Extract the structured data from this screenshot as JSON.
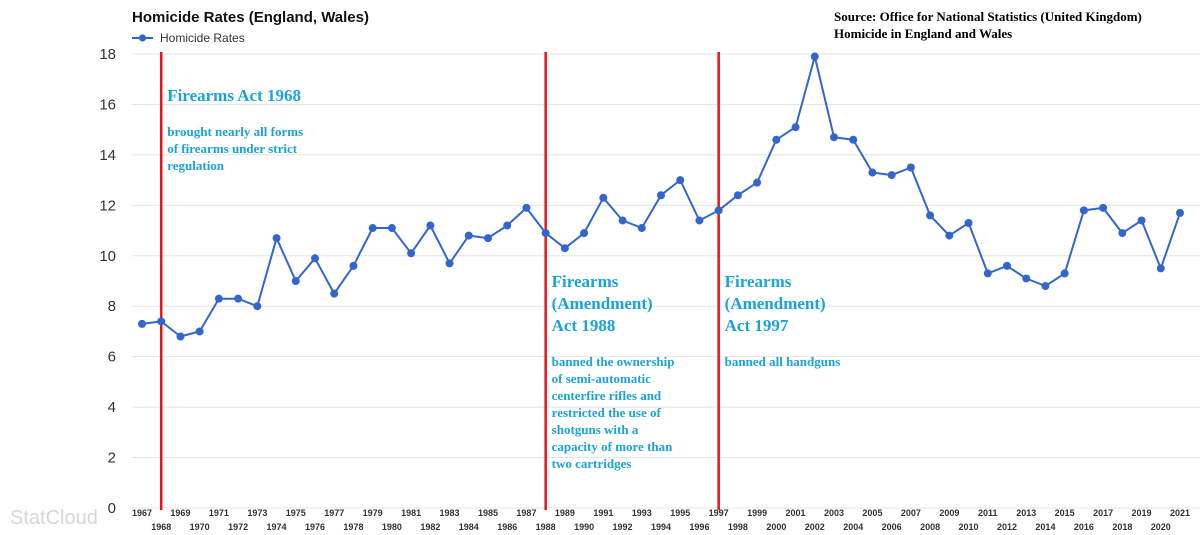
{
  "chart_data": {
    "type": "line",
    "title": "Homicide Rates (England, Wales)",
    "source_lines": [
      "Source: Office for National Statistics (United Kingdom)",
      "Homicide in England and Wales"
    ],
    "legend": "Homicide Rates",
    "legend_position": "top-left",
    "watermark": "StatCloud",
    "grid": true,
    "ylim": [
      0,
      18
    ],
    "yticks": [
      0,
      2,
      4,
      6,
      8,
      10,
      12,
      14,
      16,
      18
    ],
    "xlim": [
      1967,
      2021
    ],
    "series": [
      {
        "name": "Homicide Rates",
        "color": "#3366cc",
        "x": [
          1967,
          1968,
          1969,
          1970,
          1971,
          1972,
          1973,
          1974,
          1975,
          1976,
          1977,
          1978,
          1979,
          1980,
          1981,
          1982,
          1983,
          1984,
          1985,
          1986,
          1987,
          1988,
          1989,
          1990,
          1991,
          1992,
          1993,
          1994,
          1995,
          1996,
          1997,
          1998,
          1999,
          2000,
          2001,
          2002,
          2003,
          2004,
          2005,
          2006,
          2007,
          2008,
          2009,
          2010,
          2011,
          2012,
          2013,
          2014,
          2015,
          2016,
          2017,
          2018,
          2019,
          2020,
          2021
        ],
        "values": [
          7.3,
          7.4,
          6.8,
          7.0,
          8.3,
          8.3,
          8.0,
          10.7,
          9.0,
          9.9,
          8.5,
          9.6,
          11.1,
          11.1,
          10.1,
          11.2,
          9.7,
          10.8,
          10.7,
          11.2,
          11.9,
          10.9,
          10.3,
          10.9,
          12.3,
          11.4,
          11.1,
          12.4,
          13.0,
          11.4,
          11.8,
          12.4,
          12.9,
          14.6,
          15.1,
          17.9,
          14.7,
          14.6,
          13.3,
          13.2,
          13.5,
          11.6,
          10.8,
          11.3,
          9.3,
          9.6,
          9.1,
          8.8,
          9.3,
          11.8,
          11.9,
          10.9,
          11.4,
          9.5,
          11.7
        ]
      }
    ],
    "annotations": [
      {
        "year": 1968,
        "color": "#e8141b",
        "title_lines": [
          "Firearms Act 1968"
        ],
        "desc_lines": [
          "brought nearly all forms",
          "of firearms under strict",
          "regulation"
        ]
      },
      {
        "year": 1988,
        "color": "#e8141b",
        "title_lines": [
          "Firearms",
          "(Amendment)",
          "Act 1988"
        ],
        "desc_lines": [
          "banned the ownership",
          "of semi-automatic",
          "centerfire rifles and",
          "restricted the use of",
          "shotguns with a",
          "capacity of more than",
          "two cartridges"
        ]
      },
      {
        "year": 1997,
        "color": "#e8141b",
        "title_lines": [
          "Firearms",
          "(Amendment)",
          "Act 1997"
        ],
        "desc_lines": [
          "banned all handguns"
        ]
      }
    ]
  }
}
